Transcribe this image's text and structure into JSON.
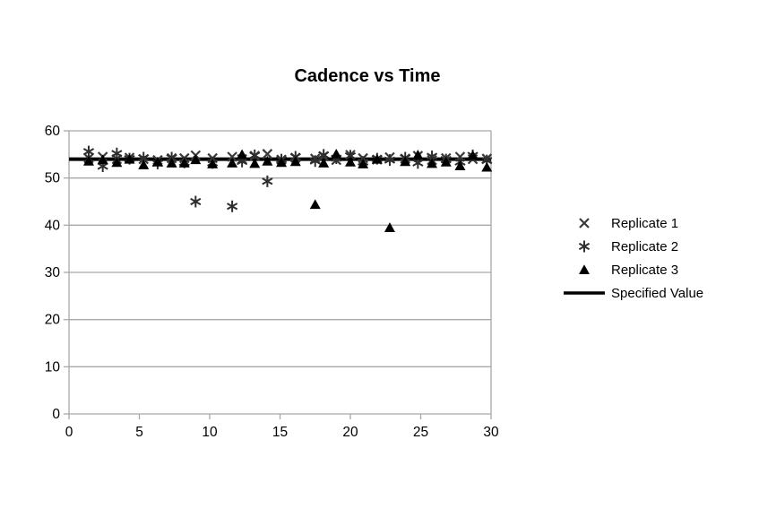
{
  "chart_data": {
    "type": "scatter",
    "title": "Cadence vs Time",
    "xlabel": "",
    "ylabel": "",
    "x_axis": {
      "min": 0,
      "max": 30,
      "ticks": [
        0,
        5,
        10,
        15,
        20,
        25,
        30
      ]
    },
    "y_axis": {
      "min": 0,
      "max": 60,
      "ticks": [
        0,
        10,
        20,
        30,
        40,
        50,
        60
      ]
    },
    "grid": "horizontal",
    "legend_position": "right",
    "x": [
      1.4,
      2.4,
      3.4,
      4.3,
      5.3,
      6.3,
      7.3,
      8.2,
      9.0,
      10.2,
      11.6,
      12.3,
      13.2,
      14.1,
      15.1,
      16.1,
      17.5,
      18.1,
      19.0,
      20.0,
      20.9,
      21.9,
      22.8,
      23.9,
      24.8,
      25.8,
      26.8,
      27.8,
      28.7,
      29.7
    ],
    "series": [
      {
        "name": "Replicate 1",
        "marker": "x",
        "color": "#3a3a3a",
        "values": [
          54.2,
          54.5,
          54.0,
          54.3,
          54.0,
          53.8,
          54.2,
          54.2,
          54.8,
          54.2,
          54.5,
          54.0,
          54.7,
          55.1,
          53.9,
          54.3,
          54.1,
          54.6,
          53.8,
          54.9,
          54.2,
          53.9,
          54.4,
          54.1,
          54.7,
          53.8,
          54.2,
          54.5,
          54.0,
          54.1
        ]
      },
      {
        "name": "Replicate 2",
        "marker": "asterisk",
        "color": "#2e2e2e",
        "values": [
          55.6,
          52.5,
          55.2,
          54.1,
          54.3,
          53.1,
          54.3,
          53.3,
          45.0,
          53.2,
          44.0,
          53.5,
          54.8,
          49.3,
          53.9,
          54.5,
          53.6,
          54.9,
          54.2,
          54.7,
          53.4,
          54.1,
          53.8,
          54.3,
          53.2,
          54.6,
          53.9,
          53.4,
          54.8,
          53.7
        ]
      },
      {
        "name": "Replicate 3",
        "marker": "triangle",
        "color": "#000000",
        "values": [
          53.6,
          53.9,
          53.3,
          54.0,
          52.8,
          53.4,
          53.2,
          53.2,
          53.9,
          53.0,
          53.2,
          55.0,
          53.1,
          53.6,
          53.3,
          53.5,
          44.4,
          53.2,
          55.1,
          53.4,
          53.0,
          54.0,
          39.5,
          53.5,
          54.9,
          53.1,
          53.4,
          52.6,
          54.8,
          52.3
        ]
      }
    ],
    "reference_line": {
      "name": "Specified Value",
      "value": 54,
      "color": "#000000"
    }
  },
  "colors": {
    "background": "#ffffff",
    "gridline": "#a8a8a8",
    "axis_text": "#000000"
  }
}
